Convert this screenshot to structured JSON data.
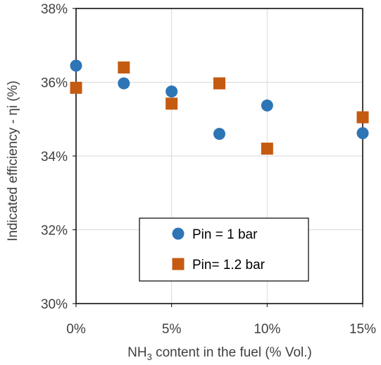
{
  "chart_data": {
    "type": "scatter",
    "title": "",
    "xlabel": {
      "prefix": "NH",
      "subscript": "3",
      "suffix": " content in the fuel (% Vol.)"
    },
    "ylabel": "Indicated efficiency - ηi (%)",
    "x_format": "percent",
    "y_format": "percent",
    "xlim": [
      0,
      15
    ],
    "ylim": [
      30,
      38
    ],
    "x_ticks": [
      "0%",
      "5%",
      "10%",
      "15%"
    ],
    "y_ticks": [
      "30%",
      "32%",
      "34%",
      "36%",
      "38%"
    ],
    "grid": true,
    "legend_position": "bottom-center",
    "series": [
      {
        "name": "Pin = 1 bar",
        "marker": "circle",
        "color": "#2E75B6",
        "x": [
          0,
          2.5,
          5,
          7.5,
          10,
          15
        ],
        "y": [
          36.45,
          35.97,
          35.75,
          34.6,
          35.37,
          34.62
        ]
      },
      {
        "name": "Pin= 1.2 bar",
        "marker": "square",
        "color": "#C55A11",
        "x": [
          0,
          2.5,
          5,
          7.5,
          10,
          15
        ],
        "y": [
          35.85,
          36.4,
          35.42,
          35.97,
          34.2,
          35.05
        ]
      }
    ]
  }
}
